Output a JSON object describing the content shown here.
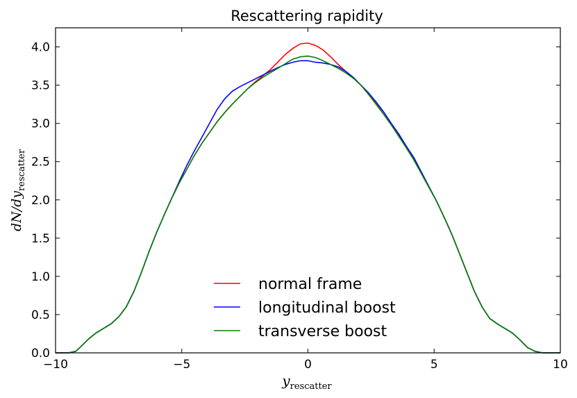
{
  "chart_data": {
    "type": "line",
    "title": "Rescattering rapidity",
    "xlabel": "y",
    "xlabel_sub": "rescatter",
    "ylabel": "dN/dy",
    "ylabel_sub": "rescatter",
    "xlim": [
      -10,
      10
    ],
    "ylim": [
      0.0,
      4.25
    ],
    "xticks": [
      -10,
      -5,
      0,
      5,
      10
    ],
    "xtick_labels": [
      "−10",
      "−5",
      "0",
      "5",
      "10"
    ],
    "yticks": [
      0.0,
      0.5,
      1.0,
      1.5,
      2.0,
      2.5,
      3.0,
      3.5,
      4.0
    ],
    "ytick_labels": [
      "0.0",
      "0.5",
      "1.0",
      "1.5",
      "2.0",
      "2.5",
      "3.0",
      "3.5",
      "4.0"
    ],
    "legend_position": "lower-center",
    "series": [
      {
        "name": "normal frame",
        "color": "#ff0000",
        "points": [
          [
            -10,
            0
          ],
          [
            -9.5,
            0
          ],
          [
            -9.2,
            0.02
          ],
          [
            -9,
            0.08
          ],
          [
            -8.7,
            0.18
          ],
          [
            -8.4,
            0.26
          ],
          [
            -8.1,
            0.32
          ],
          [
            -7.8,
            0.38
          ],
          [
            -7.5,
            0.47
          ],
          [
            -7.2,
            0.6
          ],
          [
            -6.9,
            0.8
          ],
          [
            -6.6,
            1.05
          ],
          [
            -6.3,
            1.32
          ],
          [
            -6,
            1.57
          ],
          [
            -5.7,
            1.8
          ],
          [
            -5.4,
            2.02
          ],
          [
            -5.1,
            2.22
          ],
          [
            -4.8,
            2.4
          ],
          [
            -4.5,
            2.58
          ],
          [
            -4.2,
            2.74
          ],
          [
            -3.9,
            2.88
          ],
          [
            -3.6,
            3.02
          ],
          [
            -3.3,
            3.14
          ],
          [
            -3,
            3.25
          ],
          [
            -2.7,
            3.35
          ],
          [
            -2.4,
            3.45
          ],
          [
            -2.1,
            3.54
          ],
          [
            -1.8,
            3.62
          ],
          [
            -1.5,
            3.7
          ],
          [
            -1.2,
            3.8
          ],
          [
            -0.9,
            3.9
          ],
          [
            -0.6,
            3.98
          ],
          [
            -0.3,
            4.04
          ],
          [
            0,
            4.05
          ],
          [
            0.3,
            4.02
          ],
          [
            0.6,
            3.96
          ],
          [
            0.9,
            3.87
          ],
          [
            1.2,
            3.77
          ],
          [
            1.5,
            3.68
          ],
          [
            1.8,
            3.6
          ],
          [
            2.1,
            3.5
          ],
          [
            2.4,
            3.38
          ],
          [
            2.7,
            3.25
          ],
          [
            3,
            3.12
          ],
          [
            3.3,
            2.98
          ],
          [
            3.6,
            2.84
          ],
          [
            3.9,
            2.68
          ],
          [
            4.2,
            2.52
          ],
          [
            4.5,
            2.34
          ],
          [
            4.8,
            2.16
          ],
          [
            5.1,
            1.98
          ],
          [
            5.4,
            1.77
          ],
          [
            5.7,
            1.55
          ],
          [
            6,
            1.3
          ],
          [
            6.3,
            1.05
          ],
          [
            6.6,
            0.8
          ],
          [
            6.9,
            0.6
          ],
          [
            7.2,
            0.45
          ],
          [
            7.5,
            0.38
          ],
          [
            7.8,
            0.32
          ],
          [
            8.1,
            0.26
          ],
          [
            8.4,
            0.17
          ],
          [
            8.7,
            0.07
          ],
          [
            9,
            0.02
          ],
          [
            9.3,
            0
          ],
          [
            10,
            0
          ]
        ]
      },
      {
        "name": "longitudinal boost",
        "color": "#0000ff",
        "points": [
          [
            -10,
            0
          ],
          [
            -9.5,
            0
          ],
          [
            -9.2,
            0.02
          ],
          [
            -9,
            0.08
          ],
          [
            -8.7,
            0.18
          ],
          [
            -8.4,
            0.26
          ],
          [
            -8.1,
            0.32
          ],
          [
            -7.8,
            0.38
          ],
          [
            -7.5,
            0.47
          ],
          [
            -7.2,
            0.6
          ],
          [
            -6.9,
            0.8
          ],
          [
            -6.6,
            1.05
          ],
          [
            -6.3,
            1.32
          ],
          [
            -6,
            1.57
          ],
          [
            -5.7,
            1.8
          ],
          [
            -5.4,
            2.02
          ],
          [
            -5.1,
            2.24
          ],
          [
            -4.8,
            2.45
          ],
          [
            -4.5,
            2.64
          ],
          [
            -4.2,
            2.82
          ],
          [
            -3.9,
            3.0
          ],
          [
            -3.6,
            3.18
          ],
          [
            -3.3,
            3.32
          ],
          [
            -3,
            3.42
          ],
          [
            -2.7,
            3.48
          ],
          [
            -2.4,
            3.53
          ],
          [
            -2.1,
            3.58
          ],
          [
            -1.8,
            3.63
          ],
          [
            -1.5,
            3.68
          ],
          [
            -1.2,
            3.73
          ],
          [
            -0.9,
            3.77
          ],
          [
            -0.6,
            3.8
          ],
          [
            -0.3,
            3.82
          ],
          [
            0,
            3.82
          ],
          [
            0.3,
            3.8
          ],
          [
            0.6,
            3.79
          ],
          [
            0.9,
            3.77
          ],
          [
            1.2,
            3.74
          ],
          [
            1.5,
            3.68
          ],
          [
            1.8,
            3.6
          ],
          [
            2.1,
            3.5
          ],
          [
            2.4,
            3.4
          ],
          [
            2.7,
            3.28
          ],
          [
            3,
            3.15
          ],
          [
            3.3,
            3.0
          ],
          [
            3.6,
            2.86
          ],
          [
            3.9,
            2.7
          ],
          [
            4.2,
            2.55
          ],
          [
            4.5,
            2.36
          ],
          [
            4.8,
            2.17
          ],
          [
            5.1,
            1.98
          ],
          [
            5.4,
            1.77
          ],
          [
            5.7,
            1.55
          ],
          [
            6,
            1.3
          ],
          [
            6.3,
            1.05
          ],
          [
            6.6,
            0.8
          ],
          [
            6.9,
            0.6
          ],
          [
            7.2,
            0.45
          ],
          [
            7.5,
            0.38
          ],
          [
            7.8,
            0.32
          ],
          [
            8.1,
            0.26
          ],
          [
            8.4,
            0.17
          ],
          [
            8.7,
            0.07
          ],
          [
            9,
            0.02
          ],
          [
            9.3,
            0
          ],
          [
            10,
            0
          ]
        ]
      },
      {
        "name": "transverse boost",
        "color": "#008000",
        "points": [
          [
            -10,
            0
          ],
          [
            -9.5,
            0
          ],
          [
            -9.2,
            0.02
          ],
          [
            -9,
            0.08
          ],
          [
            -8.7,
            0.18
          ],
          [
            -8.4,
            0.26
          ],
          [
            -8.1,
            0.32
          ],
          [
            -7.8,
            0.38
          ],
          [
            -7.5,
            0.47
          ],
          [
            -7.2,
            0.6
          ],
          [
            -6.9,
            0.8
          ],
          [
            -6.6,
            1.05
          ],
          [
            -6.3,
            1.32
          ],
          [
            -6,
            1.57
          ],
          [
            -5.7,
            1.8
          ],
          [
            -5.4,
            2.02
          ],
          [
            -5.1,
            2.22
          ],
          [
            -4.8,
            2.4
          ],
          [
            -4.5,
            2.58
          ],
          [
            -4.2,
            2.74
          ],
          [
            -3.9,
            2.88
          ],
          [
            -3.6,
            3.02
          ],
          [
            -3.3,
            3.14
          ],
          [
            -3,
            3.25
          ],
          [
            -2.7,
            3.35
          ],
          [
            -2.4,
            3.45
          ],
          [
            -2.1,
            3.53
          ],
          [
            -1.8,
            3.6
          ],
          [
            -1.5,
            3.66
          ],
          [
            -1.2,
            3.72
          ],
          [
            -0.9,
            3.78
          ],
          [
            -0.6,
            3.84
          ],
          [
            -0.3,
            3.87
          ],
          [
            0,
            3.88
          ],
          [
            0.3,
            3.86
          ],
          [
            0.6,
            3.82
          ],
          [
            0.9,
            3.77
          ],
          [
            1.2,
            3.72
          ],
          [
            1.5,
            3.66
          ],
          [
            1.8,
            3.59
          ],
          [
            2.1,
            3.5
          ],
          [
            2.4,
            3.38
          ],
          [
            2.7,
            3.26
          ],
          [
            3,
            3.12
          ],
          [
            3.3,
            2.98
          ],
          [
            3.6,
            2.83
          ],
          [
            3.9,
            2.68
          ],
          [
            4.2,
            2.52
          ],
          [
            4.5,
            2.34
          ],
          [
            4.8,
            2.16
          ],
          [
            5.1,
            1.98
          ],
          [
            5.4,
            1.77
          ],
          [
            5.7,
            1.55
          ],
          [
            6,
            1.3
          ],
          [
            6.3,
            1.05
          ],
          [
            6.6,
            0.8
          ],
          [
            6.9,
            0.6
          ],
          [
            7.2,
            0.45
          ],
          [
            7.5,
            0.38
          ],
          [
            7.8,
            0.32
          ],
          [
            8.1,
            0.26
          ],
          [
            8.4,
            0.17
          ],
          [
            8.7,
            0.07
          ],
          [
            9,
            0.02
          ],
          [
            9.3,
            0
          ],
          [
            10,
            0
          ]
        ]
      }
    ]
  }
}
